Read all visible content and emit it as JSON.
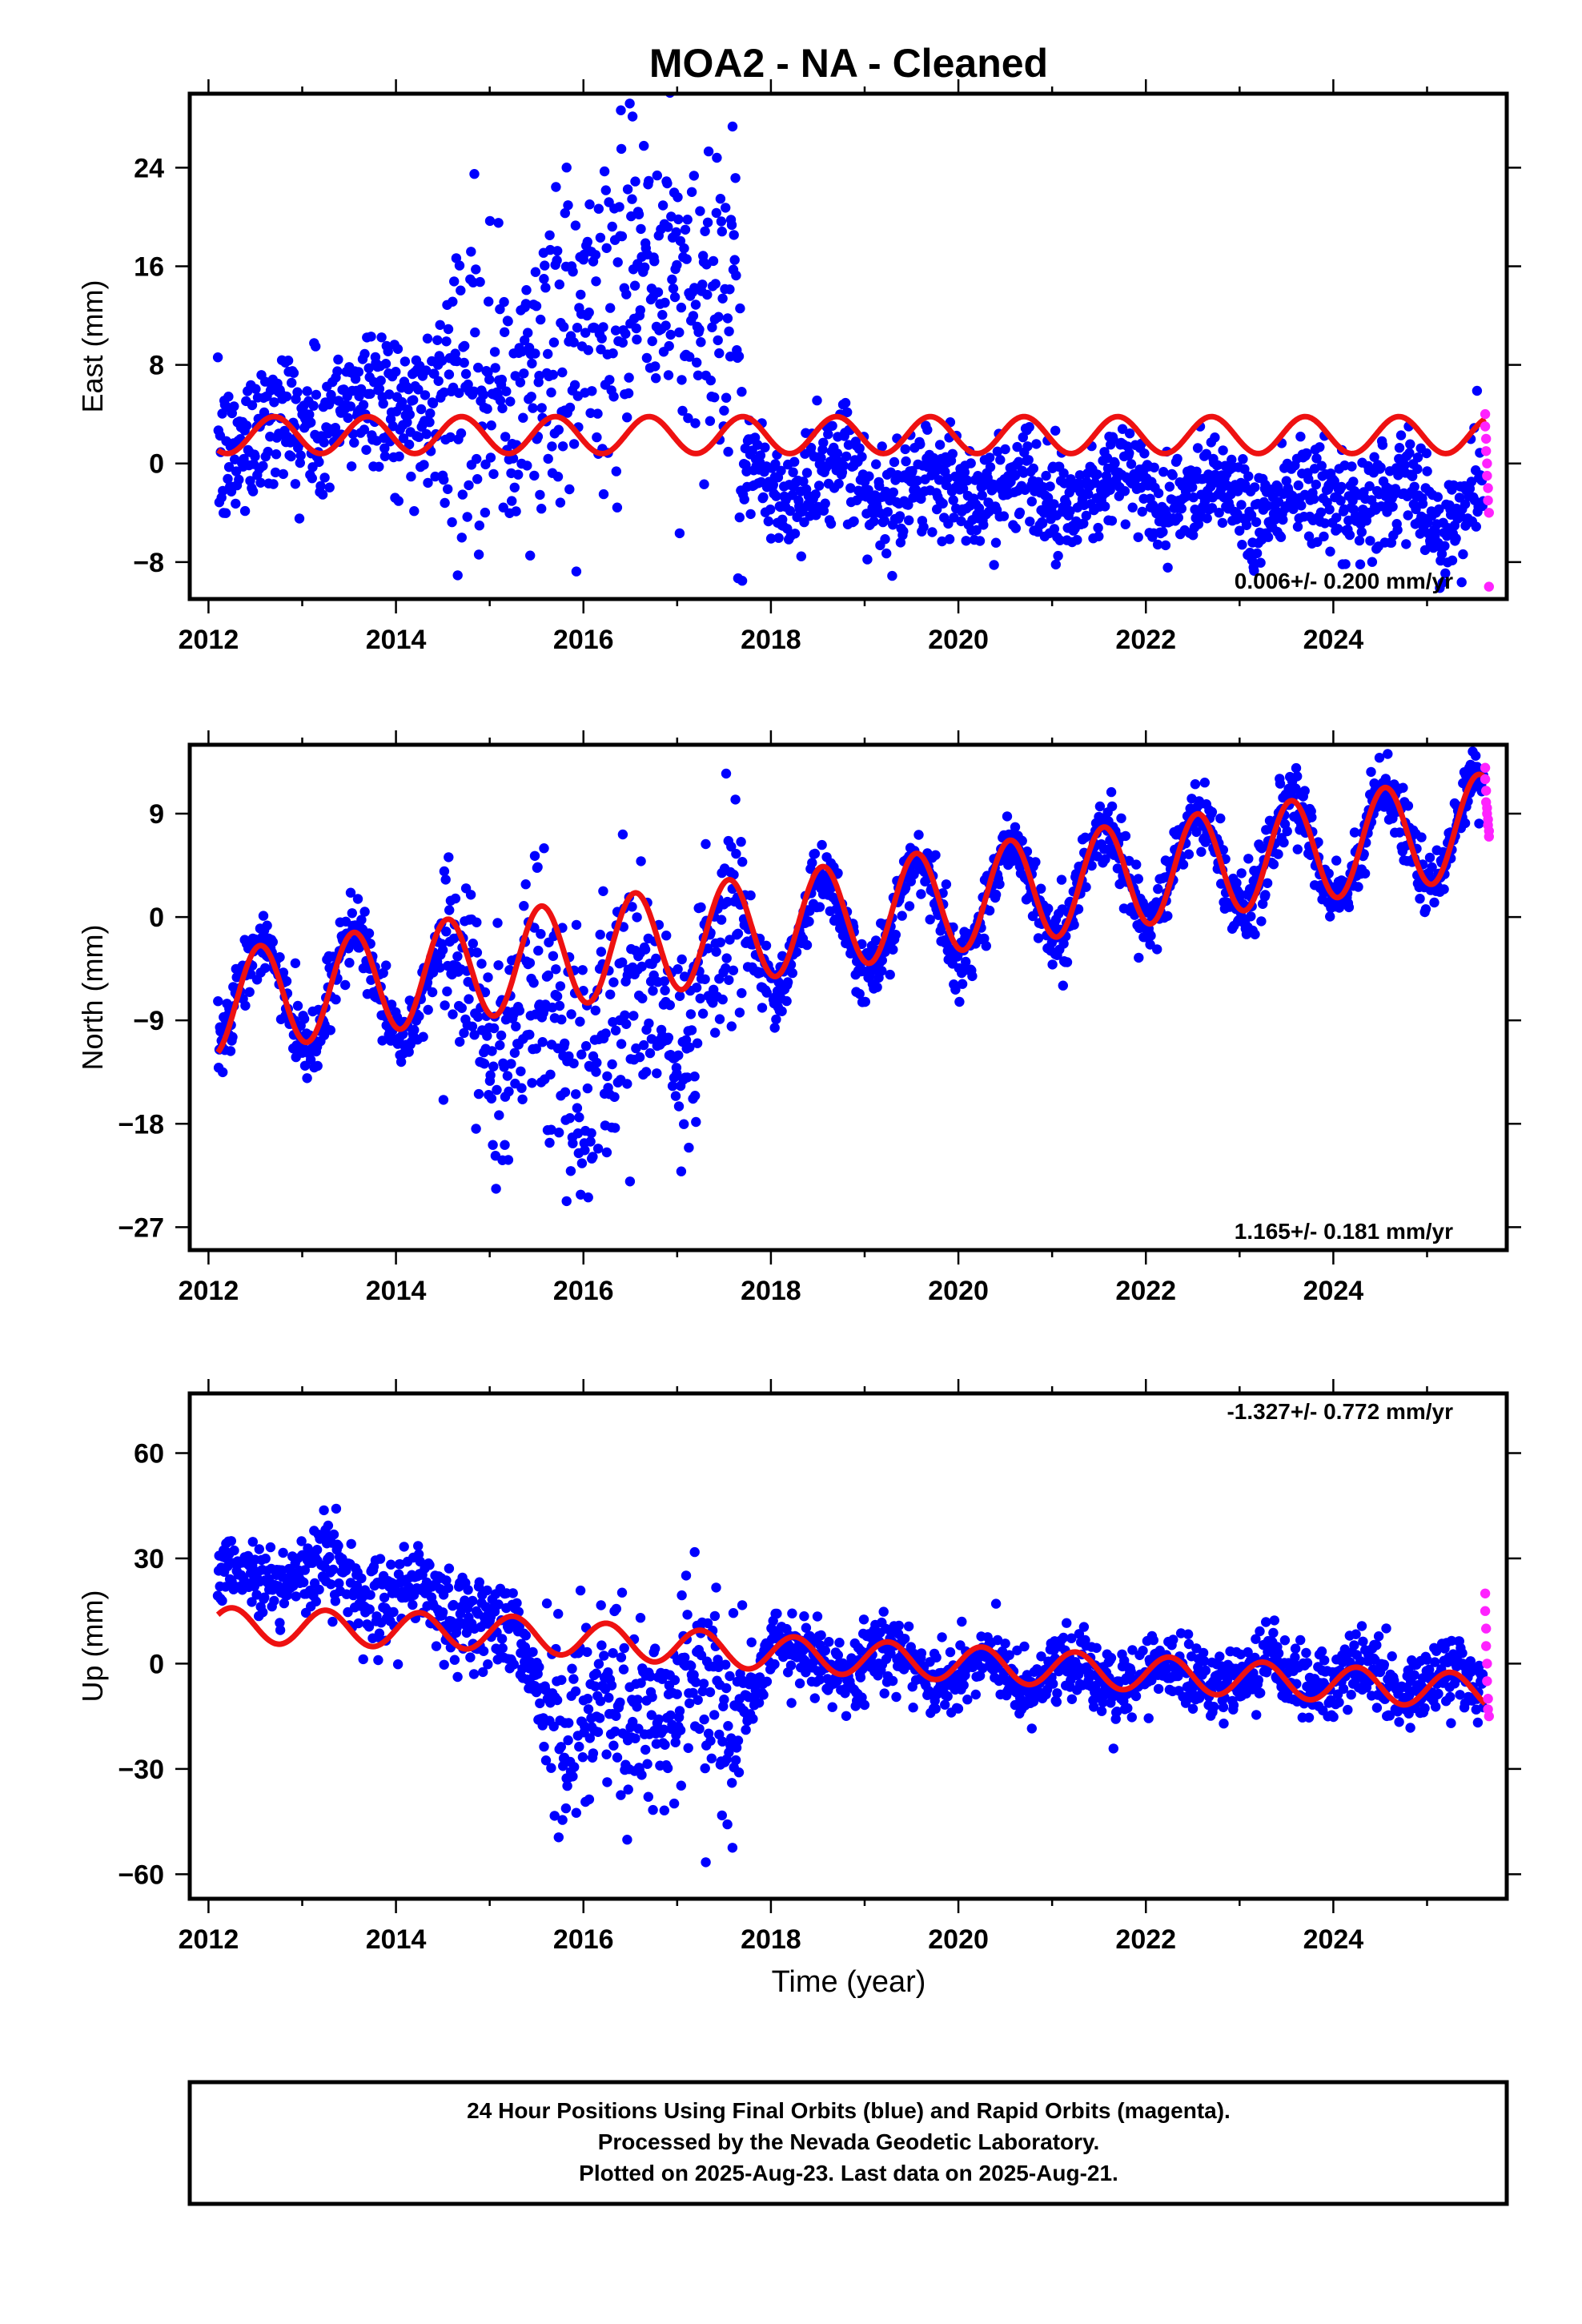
{
  "title": "MOA2  - NA - Cleaned",
  "xlabel": "Time (year)",
  "footer": {
    "line1": "24 Hour Positions Using Final Orbits (blue) and Rapid Orbits (magenta).",
    "line2": "Processed by the Nevada Geodetic Laboratory.",
    "line3": "Plotted on 2025-Aug-23. Last data on 2025-Aug-21."
  },
  "colors": {
    "final": "#0000ff",
    "rapid": "#ff22ff",
    "model": "#ee1111"
  },
  "chart_data": [
    {
      "type": "scatter",
      "name": "east",
      "ylabel": "East (mm)",
      "rate_text": "0.006+/- 0.200 mm/yr",
      "xlim": [
        2011.8,
        2025.85
      ],
      "ylim": [
        -11,
        30
      ],
      "xticks": [
        2012,
        2014,
        2016,
        2018,
        2020,
        2022,
        2024
      ],
      "yticks": [
        -8,
        0,
        8,
        16,
        24
      ],
      "ytick_labels": [
        "−8",
        "0",
        "8",
        "16",
        "24"
      ],
      "series": [
        {
          "role": "final-orbits",
          "color": "#0000ff",
          "trend": [
            [
              2012.1,
              1.5
            ],
            [
              2013.0,
              3.5
            ],
            [
              2014.0,
              5
            ],
            [
              2015.0,
              7
            ],
            [
              2015.4,
              5
            ],
            [
              2016.0,
              12
            ],
            [
              2017.0,
              15
            ],
            [
              2017.6,
              13
            ],
            [
              2017.65,
              -1.5
            ],
            [
              2020.0,
              -2
            ],
            [
              2022.0,
              -2
            ],
            [
              2024.0,
              -3
            ],
            [
              2025.6,
              -3.5
            ]
          ],
          "seasonal_amp": 1.5,
          "scatter": [
            3,
            3,
            6,
            7,
            7,
            2.2
          ]
        },
        {
          "role": "rapid-orbits",
          "color": "#ff22ff",
          "points": [
            [
              2025.62,
              4
            ],
            [
              2025.62,
              3
            ],
            [
              2025.63,
              2
            ],
            [
              2025.63,
              1
            ],
            [
              2025.64,
              0
            ],
            [
              2025.64,
              -1
            ],
            [
              2025.65,
              -2
            ],
            [
              2025.65,
              -3
            ],
            [
              2025.66,
              -4
            ],
            [
              2025.66,
              -10
            ]
          ]
        },
        {
          "role": "model",
          "color": "#ee1111",
          "trend": [
            [
              2012.1,
              2.3
            ],
            [
              2025.62,
              2.3
            ]
          ],
          "annual_amp": 1.5,
          "phase": 0.7
        }
      ]
    },
    {
      "type": "scatter",
      "name": "north",
      "ylabel": "North (mm)",
      "rate_text": "1.165+/- 0.181 mm/yr",
      "xlim": [
        2011.8,
        2025.85
      ],
      "ylim": [
        -29,
        15
      ],
      "xticks": [
        2012,
        2014,
        2016,
        2018,
        2020,
        2022,
        2024
      ],
      "yticks": [
        -27,
        -18,
        -9,
        0,
        9
      ],
      "ytick_labels": [
        "−27",
        "−18",
        "−9",
        "0",
        "9"
      ],
      "series": [
        {
          "role": "final-orbits",
          "color": "#0000ff",
          "trend": [
            [
              2012.1,
              -7
            ],
            [
              2014.0,
              -6
            ],
            [
              2015.0,
              -8
            ],
            [
              2016.0,
              -11
            ],
            [
              2017.0,
              -8
            ],
            [
              2017.7,
              -3
            ],
            [
              2018.0,
              -2
            ],
            [
              2020.0,
              1
            ],
            [
              2022.0,
              4
            ],
            [
              2024.0,
              6
            ],
            [
              2025.6,
              8
            ]
          ],
          "seasonal_amp": 4.5,
          "scatter": [
            1.5,
            1.5,
            5,
            6,
            5,
            1.5
          ]
        },
        {
          "role": "rapid-orbits",
          "color": "#ff22ff",
          "points": [
            [
              2025.62,
              13
            ],
            [
              2025.62,
              12
            ],
            [
              2025.63,
              11
            ],
            [
              2025.63,
              10
            ],
            [
              2025.64,
              9.5
            ],
            [
              2025.64,
              9
            ],
            [
              2025.65,
              8.5
            ],
            [
              2025.65,
              8
            ],
            [
              2025.66,
              7.5
            ],
            [
              2025.66,
              7
            ]
          ]
        },
        {
          "role": "model",
          "color": "#ee1111",
          "trend": [
            [
              2012.1,
              -7.5
            ],
            [
              2025.62,
              8
            ]
          ],
          "annual_amp": 4.5,
          "phase": 0.55
        }
      ]
    },
    {
      "type": "scatter",
      "name": "up",
      "ylabel": "Up (mm)",
      "rate_text": "-1.327+/- 0.772 mm/yr",
      "xlim": [
        2011.8,
        2025.85
      ],
      "ylim": [
        -67,
        77
      ],
      "xticks": [
        2012,
        2014,
        2016,
        2018,
        2020,
        2022,
        2024
      ],
      "yticks": [
        -60,
        -30,
        0,
        30,
        60
      ],
      "ytick_labels": [
        "−60",
        "−30",
        "0",
        "30",
        "60"
      ],
      "series": [
        {
          "role": "final-orbits",
          "color": "#0000ff",
          "trend": [
            [
              2012.1,
              22
            ],
            [
              2013.0,
              28
            ],
            [
              2014.0,
              20
            ],
            [
              2015.0,
              12
            ],
            [
              2015.5,
              -5
            ],
            [
              2016.0,
              -15
            ],
            [
              2017.0,
              -12
            ],
            [
              2017.7,
              -8
            ],
            [
              2018.0,
              3
            ],
            [
              2020.0,
              -2
            ],
            [
              2022.0,
              -3
            ],
            [
              2024.0,
              -4
            ],
            [
              2025.6,
              -6
            ]
          ],
          "seasonal_amp": 4,
          "scatter": [
            5,
            6,
            7,
            15,
            15,
            5
          ]
        },
        {
          "role": "rapid-orbits",
          "color": "#ff22ff",
          "points": [
            [
              2025.62,
              20
            ],
            [
              2025.62,
              15
            ],
            [
              2025.63,
              10
            ],
            [
              2025.63,
              5
            ],
            [
              2025.64,
              0
            ],
            [
              2025.64,
              -5
            ],
            [
              2025.65,
              -10
            ],
            [
              2025.65,
              -13
            ],
            [
              2025.66,
              -15
            ]
          ]
        },
        {
          "role": "model",
          "color": "#ee1111",
          "trend": [
            [
              2012.1,
              11
            ],
            [
              2015.0,
              9
            ],
            [
              2018.0,
              3
            ],
            [
              2025.62,
              -8
            ]
          ],
          "annual_amp": 5,
          "phase": 0.25
        }
      ]
    }
  ]
}
